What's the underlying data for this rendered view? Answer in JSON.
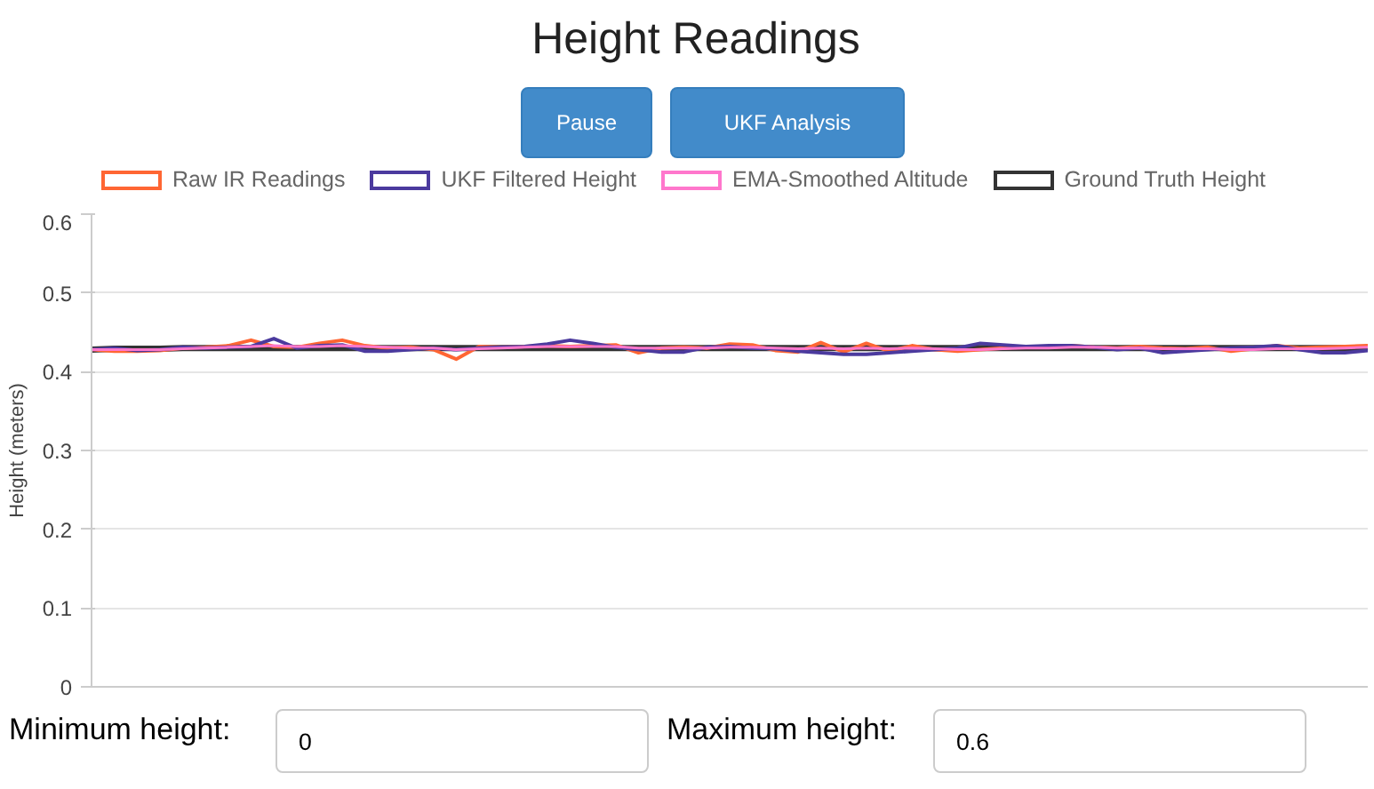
{
  "chart_data": {
    "type": "line",
    "title": "Height Readings",
    "ylabel": "Height (meters)",
    "categories": [
      null,
      null,
      null,
      null,
      null,
      null,
      null,
      null,
      null,
      null,
      null,
      null,
      null,
      null,
      null,
      null,
      null,
      null,
      null,
      null,
      null,
      null,
      null,
      null,
      null,
      null,
      null,
      null,
      null,
      null,
      null,
      null,
      null,
      null,
      null,
      null,
      null,
      null,
      null,
      null,
      null,
      null,
      null,
      null,
      null,
      null,
      null,
      null,
      null,
      null,
      null,
      null,
      null,
      null,
      null,
      null,
      null
    ],
    "series": [
      {
        "name": "Raw IR Readings",
        "color": "#ff6633",
        "values": [
          0.428,
          0.426,
          0.426,
          0.427,
          0.43,
          0.431,
          0.433,
          0.44,
          0.432,
          0.431,
          0.436,
          0.44,
          0.433,
          0.43,
          0.431,
          0.428,
          0.416,
          0.432,
          0.431,
          0.432,
          0.433,
          0.432,
          0.433,
          0.434,
          0.424,
          0.43,
          0.431,
          0.43,
          0.435,
          0.434,
          0.427,
          0.425,
          0.437,
          0.425,
          0.436,
          0.426,
          0.433,
          0.428,
          0.426,
          0.428,
          0.43,
          0.432,
          0.431,
          0.433,
          0.431,
          0.43,
          0.432,
          0.43,
          0.429,
          0.431,
          0.426,
          0.429,
          0.433,
          0.43,
          0.431,
          0.432,
          0.433
        ]
      },
      {
        "name": "UKF Filtered Height",
        "color": "#4b3a9e",
        "values": [
          0.428,
          0.43,
          0.427,
          0.428,
          0.431,
          0.43,
          0.431,
          0.432,
          0.442,
          0.43,
          0.433,
          0.434,
          0.426,
          0.426,
          0.428,
          0.43,
          0.428,
          0.43,
          0.431,
          0.432,
          0.435,
          0.44,
          0.436,
          0.431,
          0.428,
          0.425,
          0.425,
          0.431,
          0.432,
          0.43,
          0.429,
          0.426,
          0.424,
          0.422,
          0.422,
          0.424,
          0.426,
          0.428,
          0.43,
          0.436,
          0.434,
          0.432,
          0.433,
          0.433,
          0.431,
          0.428,
          0.43,
          0.424,
          0.426,
          0.428,
          0.43,
          0.431,
          0.433,
          0.428,
          0.424,
          0.424,
          0.427
        ]
      },
      {
        "name": "EMA-Smoothed Altitude",
        "color": "#ff77cc",
        "values": [
          0.428,
          0.428,
          0.428,
          0.428,
          0.429,
          0.43,
          0.431,
          0.432,
          0.433,
          0.432,
          0.432,
          0.433,
          0.432,
          0.431,
          0.43,
          0.43,
          0.428,
          0.429,
          0.43,
          0.431,
          0.432,
          0.432,
          0.432,
          0.432,
          0.43,
          0.43,
          0.43,
          0.43,
          0.431,
          0.431,
          0.43,
          0.429,
          0.43,
          0.429,
          0.43,
          0.429,
          0.43,
          0.429,
          0.428,
          0.428,
          0.429,
          0.43,
          0.43,
          0.431,
          0.431,
          0.43,
          0.43,
          0.429,
          0.429,
          0.429,
          0.428,
          0.428,
          0.429,
          0.429,
          0.429,
          0.43,
          0.431
        ]
      },
      {
        "name": "Ground Truth Height",
        "color": "#333333",
        "values": [
          0.428,
          0.429,
          0.429,
          0.429,
          0.43,
          0.43,
          0.43,
          0.43,
          0.43,
          0.43,
          0.43,
          0.43,
          0.43,
          0.43,
          0.43,
          0.43,
          0.43,
          0.43,
          0.43,
          0.43,
          0.43,
          0.43,
          0.43,
          0.43,
          0.43,
          0.43,
          0.43,
          0.43,
          0.43,
          0.43,
          0.43,
          0.43,
          0.43,
          0.43,
          0.43,
          0.43,
          0.43,
          0.43,
          0.43,
          0.43,
          0.43,
          0.43,
          0.43,
          0.43,
          0.43,
          0.43,
          0.43,
          0.43,
          0.43,
          0.43,
          0.43,
          0.43,
          0.43,
          0.43,
          0.43,
          0.43,
          0.43
        ]
      }
    ],
    "ylim": [
      0,
      0.6
    ],
    "yticks": [
      0,
      0.1,
      0.2,
      0.3,
      0.4,
      0.5,
      0.6
    ],
    "grid": "y",
    "legend": "top",
    "marker": "none",
    "line_style": "solid",
    "tick_labels": "y",
    "annotations": [
      "Pause",
      "UKF Analysis",
      "Minimum height:",
      "0",
      "Maximum height:",
      "0.6"
    ]
  }
}
